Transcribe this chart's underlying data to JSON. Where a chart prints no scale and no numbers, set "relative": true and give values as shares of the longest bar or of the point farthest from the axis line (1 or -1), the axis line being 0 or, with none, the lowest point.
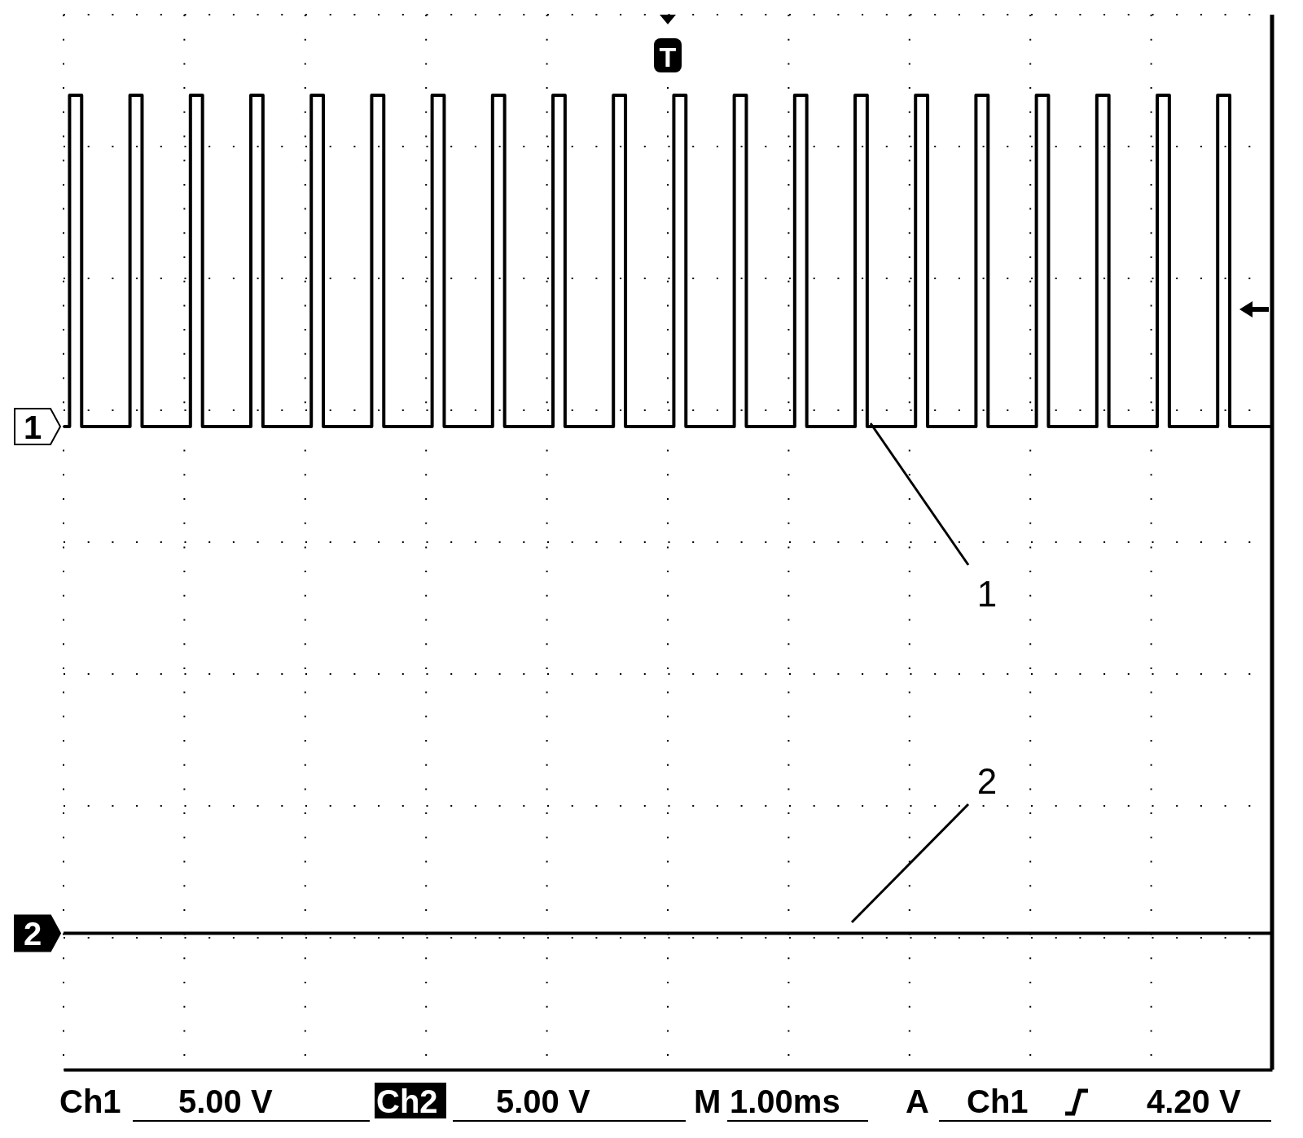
{
  "chart_data": {
    "type": "step",
    "relative": true,
    "categories": [
      null,
      null,
      null,
      null,
      null,
      null,
      null,
      null,
      null,
      null,
      null,
      null,
      null,
      null,
      null,
      null,
      null,
      null,
      null,
      null,
      null,
      null,
      null,
      null,
      null,
      null,
      null,
      null,
      null,
      null,
      null,
      null,
      null,
      null,
      null,
      null,
      null,
      null,
      null,
      null,
      null,
      null,
      null,
      null,
      null,
      null,
      null,
      null,
      null,
      null,
      null,
      null,
      null,
      null,
      null,
      null,
      null,
      null,
      null,
      null,
      null,
      null,
      null,
      null,
      null,
      null,
      null,
      null,
      null,
      null,
      null,
      null,
      null,
      null,
      null,
      null,
      null,
      null,
      null,
      null,
      null,
      null,
      null,
      null,
      null,
      null,
      null,
      null,
      null,
      null,
      null,
      null,
      null,
      null,
      null,
      null,
      null,
      null,
      null,
      null,
      null,
      null,
      null,
      null,
      null,
      null,
      null,
      null,
      null,
      null,
      null,
      null,
      null,
      null,
      null,
      null,
      null,
      null,
      null,
      null,
      null,
      null,
      null,
      null,
      null,
      null,
      null,
      null,
      null,
      null,
      null,
      null,
      null,
      null,
      null,
      null,
      null,
      null,
      null,
      null,
      null,
      null,
      null,
      null,
      null,
      null,
      null,
      null,
      null,
      null,
      null,
      null,
      null,
      null,
      null,
      null,
      null,
      null,
      null,
      null,
      null,
      null,
      null,
      null,
      null,
      null,
      null,
      null,
      null,
      null,
      null,
      null,
      null,
      null,
      null,
      null,
      null,
      null,
      null,
      null,
      null,
      null,
      null,
      null,
      null,
      null,
      null,
      null,
      null,
      null,
      null,
      null,
      null,
      null,
      null,
      null,
      null,
      null,
      null,
      null,
      null
    ],
    "grid": true,
    "marker": "none",
    "line_style": "solid",
    "series": [
      {
        "name": "1",
        "color": "#000000",
        "values": [
          0.66,
          1,
          1,
          0.66,
          0.66,
          0.66,
          0.66,
          0.66,
          0.66,
          0.66,
          0.66,
          1,
          1,
          0.66,
          0.66,
          0.66,
          0.66,
          0.66,
          0.66,
          0.66,
          0.66,
          1,
          1,
          0.66,
          0.66,
          0.66,
          0.66,
          0.66,
          0.66,
          0.66,
          0.66,
          1,
          1,
          0.66,
          0.66,
          0.66,
          0.66,
          0.66,
          0.66,
          0.66,
          0.66,
          1,
          1,
          0.66,
          0.66,
          0.66,
          0.66,
          0.66,
          0.66,
          0.66,
          0.66,
          1,
          1,
          0.66,
          0.66,
          0.66,
          0.66,
          0.66,
          0.66,
          0.66,
          0.66,
          1,
          1,
          0.66,
          0.66,
          0.66,
          0.66,
          0.66,
          0.66,
          0.66,
          0.66,
          1,
          1,
          0.66,
          0.66,
          0.66,
          0.66,
          0.66,
          0.66,
          0.66,
          0.66,
          1,
          1,
          0.66,
          0.66,
          0.66,
          0.66,
          0.66,
          0.66,
          0.66,
          0.66,
          1,
          1,
          0.66,
          0.66,
          0.66,
          0.66,
          0.66,
          0.66,
          0.66,
          0.66,
          1,
          1,
          0.66,
          0.66,
          0.66,
          0.66,
          0.66,
          0.66,
          0.66,
          0.66,
          1,
          1,
          0.66,
          0.66,
          0.66,
          0.66,
          0.66,
          0.66,
          0.66,
          0.66,
          1,
          1,
          0.66,
          0.66,
          0.66,
          0.66,
          0.66,
          0.66,
          0.66,
          0.66,
          1,
          1,
          0.66,
          0.66,
          0.66,
          0.66,
          0.66,
          0.66,
          0.66,
          0.66,
          1,
          1,
          0.66,
          0.66,
          0.66,
          0.66,
          0.66,
          0.66,
          0.66,
          0.66,
          1,
          1,
          0.66,
          0.66,
          0.66,
          0.66,
          0.66,
          0.66,
          0.66,
          0.66,
          1,
          1,
          0.66,
          0.66,
          0.66,
          0.66,
          0.66,
          0.66,
          0.66,
          0.66,
          1,
          1,
          0.66,
          0.66,
          0.66,
          0.66,
          0.66,
          0.66,
          0.66,
          0.66,
          1,
          1,
          0.66,
          0.66,
          0.66,
          0.66,
          0.66,
          0.66,
          0.66,
          0.66,
          1,
          1,
          0.66,
          0.66,
          0.66,
          0.66,
          0.66,
          0.66,
          0.66,
          0.66
        ]
      },
      {
        "name": "2",
        "color": "#000000",
        "type": "line",
        "values": [
          0.14,
          0.14,
          0.14,
          0.14,
          0.14,
          0.14,
          0.14,
          0.14,
          0.14,
          0.14,
          0.14,
          0.14,
          0.14,
          0.14,
          0.14,
          0.14,
          0.14,
          0.14,
          0.14,
          0.14,
          0.14,
          0.14,
          0.14,
          0.14,
          0.14,
          0.14,
          0.14,
          0.14,
          0.14,
          0.14,
          0.14,
          0.14,
          0.14,
          0.14,
          0.14,
          0.14,
          0.14,
          0.14,
          0.14,
          0.14,
          0.14,
          0.14,
          0.14,
          0.14,
          0.14,
          0.14,
          0.14,
          0.14,
          0.14,
          0.14,
          0.14,
          0.14,
          0.14,
          0.14,
          0.14,
          0.14,
          0.14,
          0.14,
          0.14,
          0.14,
          0.14,
          0.14,
          0.14,
          0.14,
          0.14,
          0.14,
          0.14,
          0.14,
          0.14,
          0.14,
          0.14,
          0.14,
          0.14,
          0.14,
          0.14,
          0.14,
          0.14,
          0.14,
          0.14,
          0.14,
          0.14,
          0.14,
          0.14,
          0.14,
          0.14,
          0.14,
          0.14,
          0.14,
          0.14,
          0.14,
          0.14,
          0.14,
          0.14,
          0.14,
          0.14,
          0.14,
          0.14,
          0.14,
          0.14,
          0.14,
          0.14,
          0.14,
          0.14,
          0.14,
          0.14,
          0.14,
          0.14,
          0.14,
          0.14,
          0.14,
          0.14,
          0.14,
          0.14,
          0.14,
          0.14,
          0.14,
          0.14,
          0.14,
          0.14,
          0.14,
          0.14,
          0.14,
          0.14,
          0.14,
          0.14,
          0.14,
          0.14,
          0.14,
          0.14,
          0.14,
          0.14,
          0.14,
          0.14,
          0.14,
          0.14,
          0.14,
          0.14,
          0.14,
          0.14,
          0.14,
          0.14,
          0.14,
          0.14,
          0.14,
          0.14,
          0.14,
          0.14,
          0.14,
          0.14,
          0.14,
          0.14,
          0.14,
          0.14,
          0.14,
          0.14,
          0.14,
          0.14,
          0.14,
          0.14,
          0.14,
          0.14,
          0.14,
          0.14,
          0.14,
          0.14,
          0.14,
          0.14,
          0.14,
          0.14,
          0.14,
          0.14,
          0.14,
          0.14,
          0.14,
          0.14,
          0.14,
          0.14,
          0.14,
          0.14,
          0.14,
          0.14,
          0.14,
          0.14,
          0.14,
          0.14,
          0.14,
          0.14,
          0.14,
          0.14,
          0.14,
          0.14,
          0.14,
          0.14,
          0.14,
          0.14,
          0.14,
          0.14,
          0.14,
          0.14,
          0.14,
          0.14
        ]
      }
    ],
    "annotations": [
      "T",
      "Ch1",
      "5.00 V",
      "Ch2",
      "5.00 V",
      "M",
      "1.00ms",
      "A",
      "Ch1",
      "4.20 V"
    ]
  }
}
